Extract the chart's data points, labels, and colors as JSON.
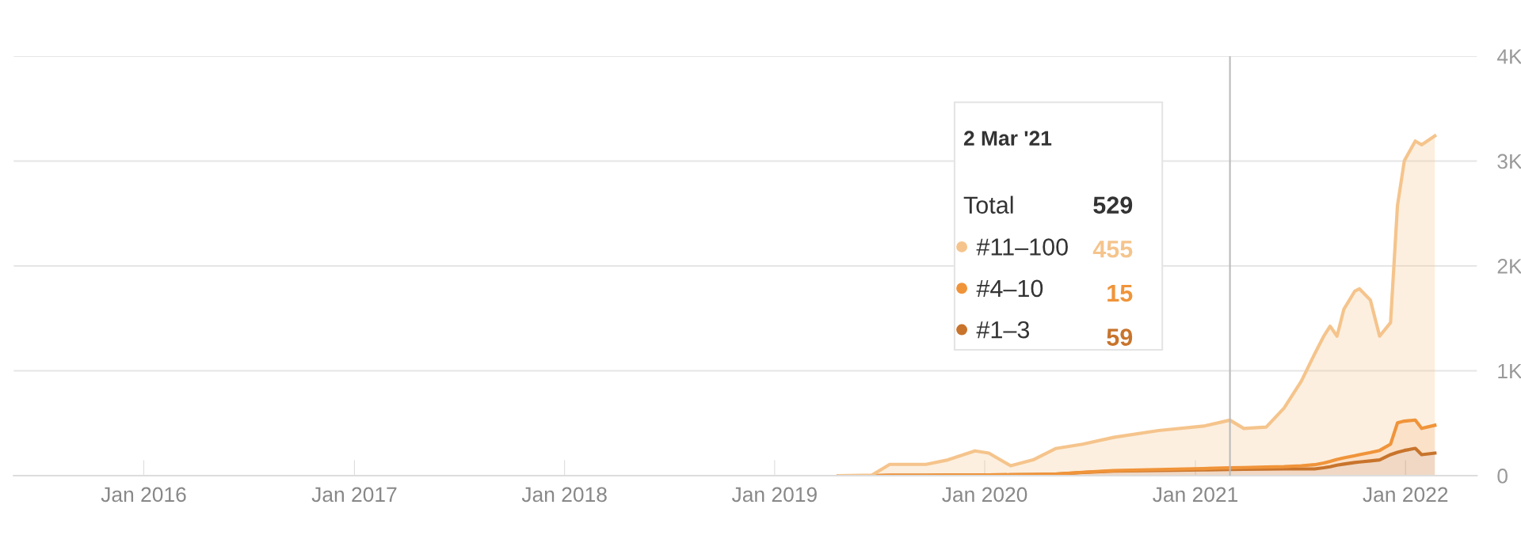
{
  "chart_data": {
    "type": "area",
    "stacked": true,
    "x": [
      "2019-04-22",
      "2019-06-19",
      "2019-07-20",
      "2019-09-21",
      "2019-10-29",
      "2019-12-15",
      "2020-01-08",
      "2020-02-15",
      "2020-03-25",
      "2020-05-03",
      "2020-06-19",
      "2020-08-12",
      "2020-10-29",
      "2021-01-15",
      "2021-03-02",
      "2021-03-26",
      "2021-05-04",
      "2021-06-04",
      "2021-07-04",
      "2021-07-27",
      "2021-08-12",
      "2021-08-23",
      "2021-09-04",
      "2021-09-16",
      "2021-10-05",
      "2021-10-13",
      "2021-11-01",
      "2021-11-17",
      "2021-12-06",
      "2021-12-18",
      "2021-12-30",
      "2022-01-18",
      "2022-01-29",
      "2022-02-21"
    ],
    "series": [
      {
        "name": "#1–3",
        "color": "#c8742c",
        "values": [
          0,
          0,
          2,
          3,
          4,
          5,
          6,
          8,
          10,
          15,
          30,
          43,
          50,
          55,
          59,
          60,
          62,
          64,
          64,
          64,
          75,
          85,
          100,
          110,
          125,
          130,
          140,
          150,
          200,
          223,
          240,
          260,
          200,
          215
        ]
      },
      {
        "name": "#4–10",
        "color": "#f0943a",
        "values": [
          0,
          0,
          0,
          0,
          0,
          0,
          0,
          0,
          0,
          0,
          2,
          5,
          8,
          12,
          15,
          17,
          20,
          22,
          30,
          40,
          45,
          50,
          55,
          60,
          65,
          70,
          80,
          90,
          100,
          280,
          280,
          270,
          250,
          265
        ]
      },
      {
        "name": "#11–100",
        "color": "#f5c48c",
        "values": [
          0,
          5,
          105,
          104,
          146,
          231,
          209,
          86,
          140,
          243,
          268,
          317,
          372,
          405,
          455,
          373,
          381,
          558,
          807,
          1055,
          1210,
          1290,
          1175,
          1418,
          1570,
          1581,
          1454,
          1090,
          1159,
          2072,
          2484,
          2661,
          2705,
          2760
        ]
      }
    ],
    "annotations": [
      "2 Mar '21",
      "Total",
      "529",
      "455",
      "15",
      "59"
    ],
    "legend": "bottom right",
    "ref_lines": [
      {
        "axis": "x",
        "value": "2021-03-02",
        "color": "#bbbbbb"
      }
    ],
    "xlim": [
      "2015-05-20",
      "2022-05-05"
    ],
    "xticks": [
      {
        "value": "2016-01-01",
        "label": "Jan 2016"
      },
      {
        "value": "2017-01-01",
        "label": "Jan 2017"
      },
      {
        "value": "2018-01-01",
        "label": "Jan 2018"
      },
      {
        "value": "2019-01-01",
        "label": "Jan 2019"
      },
      {
        "value": "2020-01-01",
        "label": "Jan 2020"
      },
      {
        "value": "2021-01-01",
        "label": "Jan 2021"
      },
      {
        "value": "2022-01-01",
        "label": "Jan 2022"
      }
    ],
    "ylim": [
      0,
      4000
    ],
    "yticks": [
      {
        "value": 0,
        "label": "0"
      },
      {
        "value": 1000,
        "label": "1K"
      },
      {
        "value": 2000,
        "label": "2K"
      },
      {
        "value": 3000,
        "label": "3K"
      },
      {
        "value": 4000,
        "label": "4K"
      }
    ],
    "grid": "y"
  }
}
